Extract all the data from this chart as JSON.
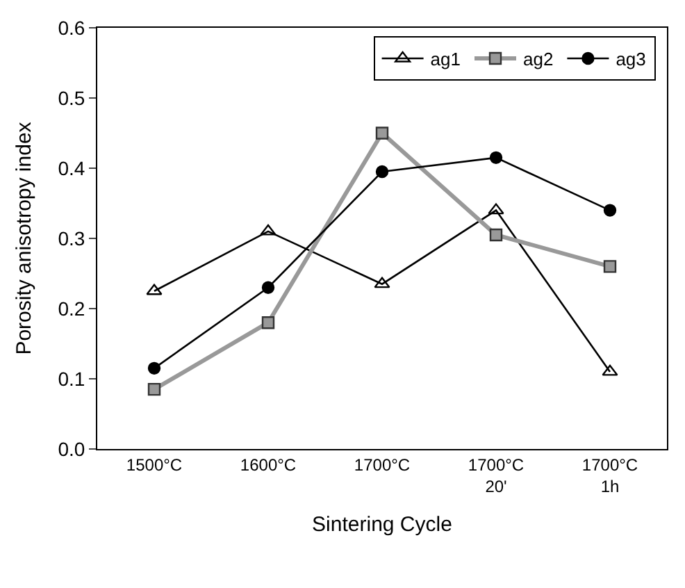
{
  "chart_data": {
    "type": "line",
    "xlabel": "Sintering Cycle",
    "ylabel": "Porosity anisotropy index",
    "categories": [
      "1500°C",
      "1600°C",
      "1700°C",
      "1700°C\n20'",
      "1700°C\n1h"
    ],
    "ylim": [
      0,
      0.6
    ],
    "yticks": [
      {
        "value": 0,
        "label": "0.0"
      },
      {
        "value": 0.1,
        "label": "0.1"
      },
      {
        "value": 0.2,
        "label": "0.2"
      },
      {
        "value": 0.3,
        "label": "0.3"
      },
      {
        "value": 0.4,
        "label": "0.4"
      },
      {
        "value": 0.5,
        "label": "0.5"
      },
      {
        "value": 0.6,
        "label": "0.6"
      }
    ],
    "legend": "top right",
    "series": [
      {
        "name": "ag1",
        "color": "#000000",
        "marker": "triangle",
        "values": [
          0.225,
          0.31,
          0.235,
          0.34,
          0.11
        ]
      },
      {
        "name": "ag2",
        "color": "#999999",
        "marker": "square",
        "values": [
          0.085,
          0.18,
          0.45,
          0.305,
          0.26
        ]
      },
      {
        "name": "ag3",
        "color": "#000000",
        "marker": "circle",
        "values": [
          0.115,
          0.23,
          0.395,
          0.415,
          0.34
        ]
      }
    ]
  }
}
